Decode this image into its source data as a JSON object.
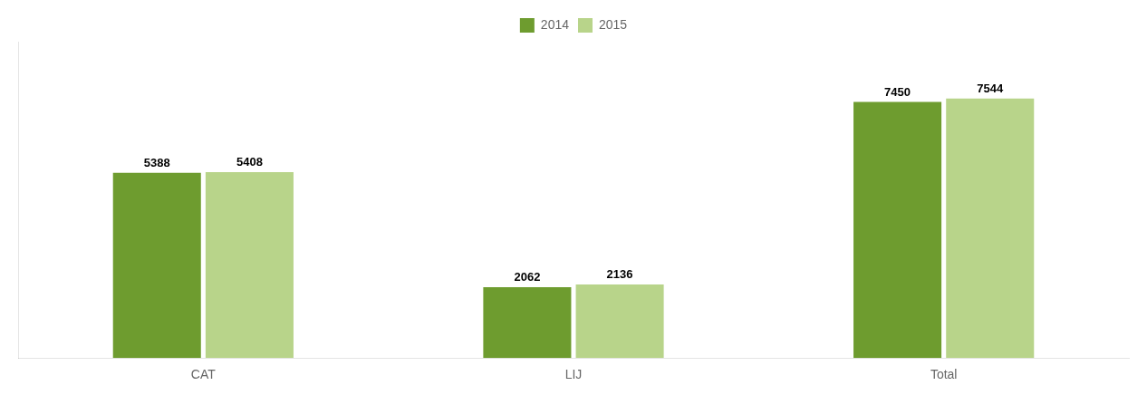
{
  "chart_data": {
    "type": "bar",
    "categories": [
      "CAT",
      "LIJ",
      "Total"
    ],
    "series": [
      {
        "name": "2014",
        "color": "#6e9c2f",
        "values": [
          5388,
          2062,
          7450
        ]
      },
      {
        "name": "2015",
        "color": "#b8d48a",
        "values": [
          5408,
          2136,
          7544
        ]
      }
    ],
    "ylim": [
      0,
      9200
    ],
    "grid": false,
    "legend": "top",
    "data_labels": true,
    "tick_labels": "x"
  }
}
